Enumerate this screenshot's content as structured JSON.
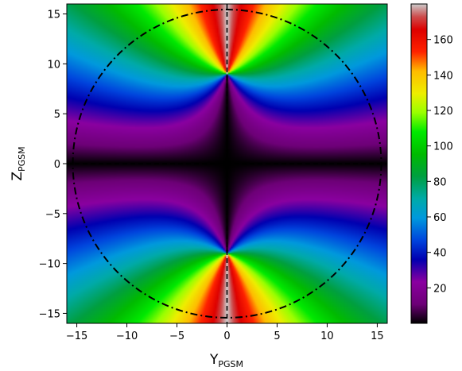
{
  "chart_data": {
    "type": "heatmap",
    "title": "",
    "xlabel": "Y",
    "xlabel_subscript": "PGSM",
    "ylabel": "Z",
    "ylabel_subscript": "PGSM",
    "xlim": [
      -16,
      16
    ],
    "ylim": [
      -16,
      16
    ],
    "x_ticks": [
      -15,
      -10,
      -5,
      0,
      5,
      10,
      15
    ],
    "y_ticks": [
      -15,
      -10,
      -5,
      0,
      5,
      10,
      15
    ],
    "x_tick_labels": [
      "−15",
      "−10",
      "−5",
      "0",
      "5",
      "10",
      "15"
    ],
    "y_tick_labels": [
      "−15",
      "−10",
      "−5",
      "0",
      "5",
      "10",
      "15"
    ],
    "colorbar": {
      "range": [
        0,
        180
      ],
      "ticks": [
        20,
        40,
        60,
        80,
        100,
        120,
        140,
        160
      ],
      "tick_labels": [
        "20",
        "40",
        "60",
        "80",
        "100",
        "120",
        "140",
        "160"
      ],
      "colormap": "nipy_spectral"
    },
    "field_sources": [
      {
        "y": 0,
        "z": 9
      },
      {
        "y": 0,
        "z": -9
      }
    ],
    "overlays": {
      "circle": {
        "center": [
          0,
          0
        ],
        "radius": 15.4,
        "style": "dash-dot"
      },
      "vertical_line": {
        "y": 0,
        "style": "dashed"
      },
      "horizontal_line": {
        "z": 0,
        "style": "dashed"
      }
    }
  }
}
